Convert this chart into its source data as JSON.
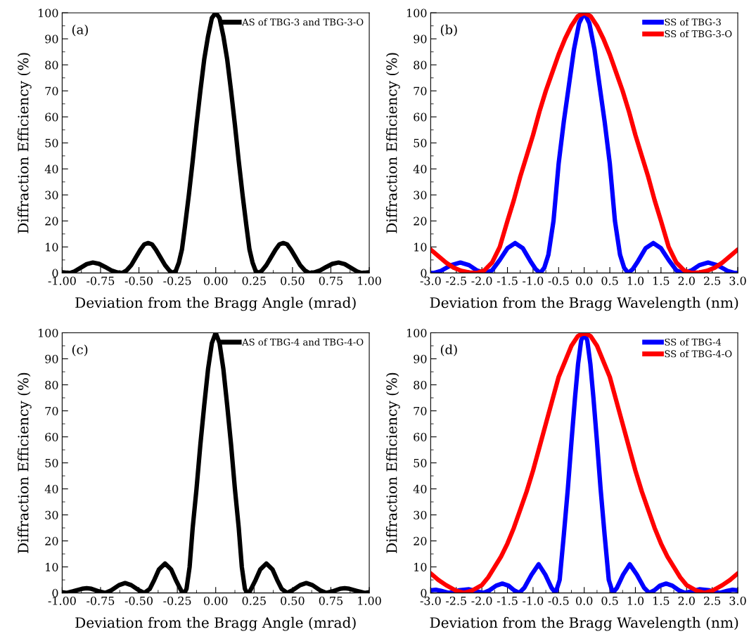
{
  "chart_data": [
    {
      "type": "line",
      "xlabel": "Deviation from the Bragg Angle (mrad)",
      "ylabel": "Diffraction Efficiency (%)",
      "annotations": [
        "(a)"
      ],
      "legend": "top right",
      "grid": false,
      "xlim": [
        -1,
        1
      ],
      "ylim": [
        0,
        100
      ],
      "xticks": [
        {
          "value": -1,
          "label": "-1.00"
        },
        {
          "value": -0.75,
          "label": "-0.75"
        },
        {
          "value": -0.5,
          "label": "-0.50"
        },
        {
          "value": -0.25,
          "label": "-0.25"
        },
        {
          "value": 0,
          "label": "0.00"
        },
        {
          "value": 0.25,
          "label": "0.25"
        },
        {
          "value": 0.5,
          "label": "0.50"
        },
        {
          "value": 0.75,
          "label": "0.75"
        },
        {
          "value": 1,
          "label": "1.00"
        }
      ],
      "yticks": [
        0,
        10,
        20,
        30,
        40,
        50,
        60,
        70,
        80,
        90,
        100
      ],
      "series": [
        {
          "name": "AS of TBG-3 and TBG-3-O",
          "color": "#000000",
          "x": [
            -1,
            -0.97,
            -0.95,
            -0.92,
            -0.88,
            -0.84,
            -0.8,
            -0.76,
            -0.72,
            -0.68,
            -0.64,
            -0.61,
            -0.58,
            -0.55,
            -0.52,
            -0.49,
            -0.465,
            -0.44,
            -0.415,
            -0.39,
            -0.36,
            -0.33,
            -0.3,
            -0.28,
            -0.26,
            -0.24,
            -0.22,
            -0.2,
            -0.175,
            -0.15,
            -0.125,
            -0.1,
            -0.075,
            -0.05,
            -0.025,
            0,
            0.025,
            0.05,
            0.075,
            0.1,
            0.125,
            0.15,
            0.175,
            0.2,
            0.22,
            0.24,
            0.26,
            0.28,
            0.3,
            0.33,
            0.36,
            0.39,
            0.415,
            0.44,
            0.465,
            0.49,
            0.52,
            0.55,
            0.58,
            0.61,
            0.64,
            0.68,
            0.72,
            0.76,
            0.8,
            0.84,
            0.88,
            0.92,
            0.95,
            0.97,
            1
          ],
          "values": [
            0.3,
            0.1,
            0,
            0.6,
            2,
            3.4,
            4,
            3.5,
            2.3,
            1,
            0.2,
            0,
            1,
            3,
            6,
            9,
            11,
            11.5,
            11,
            9,
            6,
            3,
            0.8,
            0,
            0.8,
            4,
            9,
            18,
            30,
            43,
            57,
            70,
            82,
            91,
            98,
            100,
            98,
            91,
            82,
            70,
            57,
            43,
            30,
            18,
            9,
            4,
            0.8,
            0,
            0.8,
            3,
            6,
            9,
            11,
            11.5,
            11,
            9,
            6,
            3,
            1,
            0,
            0.2,
            1,
            2.3,
            3.5,
            4,
            3.4,
            2,
            0.6,
            0,
            0.1,
            0.3
          ]
        }
      ]
    },
    {
      "type": "line",
      "xlabel": "Deviation from the Bragg Wavelength (nm)",
      "ylabel": "Diffraction Efficiency (%)",
      "annotations": [
        "(b)"
      ],
      "legend": "top right",
      "grid": false,
      "xlim": [
        -3,
        3
      ],
      "ylim": [
        0,
        100
      ],
      "xticks": [
        {
          "value": -3,
          "label": "-3.0"
        },
        {
          "value": -2.5,
          "label": "-2.5"
        },
        {
          "value": -2,
          "label": "-2.0"
        },
        {
          "value": -1.5,
          "label": "-1.5"
        },
        {
          "value": -1,
          "label": "-1.0"
        },
        {
          "value": -0.5,
          "label": "-0.5"
        },
        {
          "value": 0,
          "label": "0.0"
        },
        {
          "value": 0.5,
          "label": "0.5"
        },
        {
          "value": 1,
          "label": "1.0"
        },
        {
          "value": 1.5,
          "label": "1.5"
        },
        {
          "value": 2,
          "label": "2.0"
        },
        {
          "value": 2.5,
          "label": "2.5"
        },
        {
          "value": 3,
          "label": "3.0"
        }
      ],
      "yticks": [
        0,
        10,
        20,
        30,
        40,
        50,
        60,
        70,
        80,
        90,
        100
      ],
      "series": [
        {
          "name": "SS of TBG-3",
          "color": "#0000ff",
          "x": [
            -3,
            -2.93,
            -2.8,
            -2.6,
            -2.42,
            -2.25,
            -2.1,
            -1.93,
            -1.8,
            -1.65,
            -1.5,
            -1.35,
            -1.2,
            -1.05,
            -0.95,
            -0.86,
            -0.78,
            -0.7,
            -0.6,
            -0.5,
            -0.4,
            -0.3,
            -0.2,
            -0.1,
            0,
            0.1,
            0.2,
            0.3,
            0.4,
            0.5,
            0.6,
            0.7,
            0.78,
            0.86,
            0.95,
            1.05,
            1.2,
            1.35,
            1.5,
            1.65,
            1.8,
            1.93,
            2.1,
            2.25,
            2.42,
            2.6,
            2.8,
            2.93,
            3
          ],
          "values": [
            0,
            0,
            0.8,
            3,
            4,
            3,
            1,
            0,
            1,
            5,
            9.5,
            11.5,
            9.5,
            4.5,
            1.5,
            0,
            2,
            7,
            20,
            42,
            58,
            72,
            86,
            96,
            100,
            96,
            86,
            72,
            58,
            42,
            20,
            7,
            2,
            0,
            1.5,
            4.5,
            9.5,
            11.5,
            9.5,
            5,
            1,
            0,
            1,
            3,
            4,
            3,
            0.8,
            0,
            0
          ]
        },
        {
          "name": "SS of TBG-3-O",
          "color": "#ff0000",
          "x": [
            -3,
            -2.85,
            -2.7,
            -2.55,
            -2.4,
            -2.25,
            -2.1,
            -1.95,
            -1.8,
            -1.65,
            -1.5,
            -1.375,
            -1.25,
            -1.125,
            -1,
            -0.875,
            -0.75,
            -0.625,
            -0.5,
            -0.375,
            -0.25,
            -0.125,
            0,
            0.125,
            0.25,
            0.375,
            0.5,
            0.625,
            0.75,
            0.875,
            1,
            1.125,
            1.25,
            1.375,
            1.5,
            1.65,
            1.8,
            1.95,
            2.1,
            2.25,
            2.4,
            2.55,
            2.7,
            2.85,
            3
          ],
          "values": [
            9,
            6.5,
            4,
            2,
            0.8,
            0.2,
            0,
            1,
            4,
            10,
            20,
            28,
            37,
            45,
            53,
            62,
            70,
            77,
            84,
            90,
            95,
            98.7,
            100,
            98.7,
            95,
            90,
            84,
            77,
            70,
            62,
            53,
            45,
            37,
            28,
            20,
            10,
            4,
            1,
            0,
            0.2,
            0.8,
            2,
            4,
            6.5,
            9
          ]
        }
      ]
    },
    {
      "type": "line",
      "xlabel": "Deviation from the Bragg Angle (mrad)",
      "ylabel": "Diffraction Efficiency (%)",
      "annotations": [
        "(c)"
      ],
      "legend": "top right",
      "grid": false,
      "xlim": [
        -1,
        1
      ],
      "ylim": [
        0,
        100
      ],
      "xticks": [
        {
          "value": -1,
          "label": "-1.00"
        },
        {
          "value": -0.75,
          "label": "-0.75"
        },
        {
          "value": -0.5,
          "label": "-0.50"
        },
        {
          "value": -0.25,
          "label": "-0.25"
        },
        {
          "value": 0,
          "label": "0.00"
        },
        {
          "value": 0.25,
          "label": "0.25"
        },
        {
          "value": 0.5,
          "label": "0.50"
        },
        {
          "value": 0.75,
          "label": "0.75"
        },
        {
          "value": 1,
          "label": "1.00"
        }
      ],
      "yticks": [
        0,
        10,
        20,
        30,
        40,
        50,
        60,
        70,
        80,
        90,
        100
      ],
      "series": [
        {
          "name": "AS of TBG-4 and TBG-4-O",
          "color": "#000000",
          "x": [
            -1,
            -0.97,
            -0.93,
            -0.87,
            -0.84,
            -0.81,
            -0.76,
            -0.72,
            -0.68,
            -0.63,
            -0.59,
            -0.55,
            -0.5,
            -0.465,
            -0.43,
            -0.4,
            -0.37,
            -0.33,
            -0.29,
            -0.26,
            -0.23,
            -0.22,
            -0.21,
            -0.2,
            -0.19,
            -0.17,
            -0.15,
            -0.125,
            -0.1,
            -0.075,
            -0.05,
            -0.025,
            0,
            0.025,
            0.05,
            0.075,
            0.1,
            0.125,
            0.15,
            0.17,
            0.19,
            0.2,
            0.21,
            0.22,
            0.23,
            0.26,
            0.29,
            0.33,
            0.37,
            0.4,
            0.43,
            0.465,
            0.5,
            0.55,
            0.59,
            0.63,
            0.68,
            0.72,
            0.76,
            0.81,
            0.84,
            0.87,
            0.93,
            0.97,
            1
          ],
          "values": [
            0.3,
            0,
            0.6,
            1.6,
            1.8,
            1.6,
            0.6,
            0,
            1,
            3,
            3.8,
            3,
            1,
            0,
            1.5,
            5,
            9,
            11.3,
            9,
            5,
            1.5,
            0.4,
            0,
            0.4,
            1.6,
            10,
            25,
            40,
            57,
            72,
            86,
            96,
            100,
            96,
            86,
            72,
            57,
            40,
            25,
            10,
            1.6,
            0.4,
            0,
            0.4,
            1.5,
            5,
            9,
            11.3,
            9,
            5,
            1.5,
            0,
            1,
            3,
            3.8,
            3,
            1,
            0,
            0.6,
            1.6,
            1.8,
            1.6,
            0.6,
            0,
            0.3
          ]
        }
      ]
    },
    {
      "type": "line",
      "xlabel": "Deviation from the Bragg Wavelength (nm)",
      "ylabel": "Diffraction Efficiency (%)",
      "annotations": [
        "(d)"
      ],
      "legend": "top right",
      "grid": false,
      "xlim": [
        -3,
        3
      ],
      "ylim": [
        0,
        100
      ],
      "xticks": [
        {
          "value": -3,
          "label": "-3.0"
        },
        {
          "value": -2.5,
          "label": "-2.5"
        },
        {
          "value": -2,
          "label": "-2.0"
        },
        {
          "value": -1.5,
          "label": "-1.5"
        },
        {
          "value": -1,
          "label": "-1.0"
        },
        {
          "value": -0.5,
          "label": "-0.5"
        },
        {
          "value": 0,
          "label": "0.0"
        },
        {
          "value": 0.5,
          "label": "0.5"
        },
        {
          "value": 1,
          "label": "1.0"
        },
        {
          "value": 1.5,
          "label": "1.5"
        },
        {
          "value": 2,
          "label": "2.0"
        },
        {
          "value": 2.5,
          "label": "2.5"
        },
        {
          "value": 3,
          "label": "3.0"
        }
      ],
      "yticks": [
        0,
        10,
        20,
        30,
        40,
        50,
        60,
        70,
        80,
        90,
        100
      ],
      "series": [
        {
          "name": "SS of TBG-4",
          "color": "#0000ff",
          "x": [
            -3,
            -2.9,
            -2.8,
            -2.65,
            -2.55,
            -2.45,
            -2.25,
            -2.1,
            -1.97,
            -1.85,
            -1.72,
            -1.6,
            -1.48,
            -1.37,
            -1.27,
            -1.17,
            -1.03,
            -0.89,
            -0.76,
            -0.64,
            -0.56,
            -0.48,
            -0.4,
            -0.32,
            -0.25,
            -0.18,
            -0.12,
            -0.06,
            0,
            0.06,
            0.12,
            0.18,
            0.25,
            0.32,
            0.4,
            0.48,
            0.56,
            0.64,
            0.76,
            0.89,
            1.03,
            1.17,
            1.27,
            1.37,
            1.48,
            1.6,
            1.72,
            1.85,
            1.97,
            2.1,
            2.25,
            2.45,
            2.55,
            2.65,
            2.8,
            2.9,
            3
          ],
          "values": [
            1,
            1.2,
            0.8,
            0,
            0.4,
            1,
            1.4,
            0.6,
            0,
            1,
            2.8,
            3.6,
            2.8,
            1,
            0,
            2,
            7,
            11,
            7,
            2,
            0,
            5,
            22,
            40,
            58,
            75,
            88,
            97,
            100,
            97,
            88,
            75,
            58,
            40,
            22,
            5,
            0,
            2,
            7,
            11,
            7,
            2,
            0,
            1,
            2.8,
            3.6,
            2.8,
            1,
            0,
            0.6,
            1.4,
            1,
            0.4,
            0,
            0.8,
            1.2,
            1
          ]
        },
        {
          "name": "SS of TBG-4-O",
          "color": "#ff0000",
          "x": [
            -3,
            -2.85,
            -2.7,
            -2.5,
            -2.35,
            -2.2,
            -2,
            -1.875,
            -1.75,
            -1.625,
            -1.5,
            -1.375,
            -1.25,
            -1.125,
            -1,
            -0.875,
            -0.75,
            -0.625,
            -0.5,
            -0.375,
            -0.25,
            -0.125,
            0,
            0.125,
            0.25,
            0.375,
            0.5,
            0.625,
            0.75,
            0.875,
            1,
            1.125,
            1.25,
            1.375,
            1.5,
            1.625,
            1.75,
            1.875,
            2,
            2.2,
            2.35,
            2.5,
            2.7,
            2.85,
            3
          ],
          "values": [
            7.5,
            5,
            3,
            0.8,
            0,
            0.8,
            3,
            6,
            10,
            14,
            19,
            25,
            32,
            39,
            47,
            56,
            65,
            74,
            83,
            89,
            95,
            98.7,
            100,
            98.7,
            95,
            89,
            83,
            74,
            65,
            56,
            47,
            39,
            32,
            25,
            19,
            14,
            10,
            6,
            3,
            0.8,
            0,
            0.8,
            3,
            5,
            7.5
          ]
        }
      ]
    }
  ]
}
